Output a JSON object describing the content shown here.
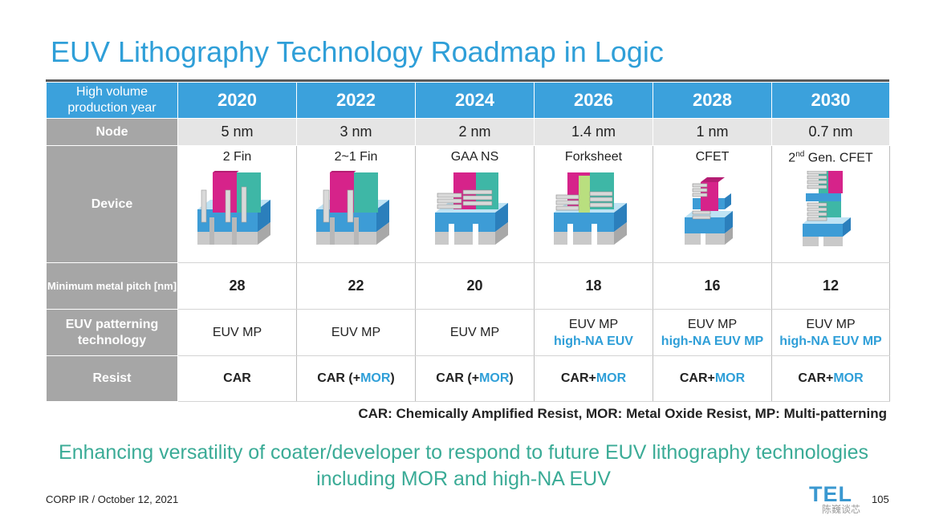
{
  "title": "EUV Lithography Technology Roadmap in Logic",
  "row_labels": {
    "year": "High volume production year",
    "node": "Node",
    "device": "Device",
    "pitch": "Minimum metal pitch [nm]",
    "euv": "EUV patterning technology",
    "resist": "Resist"
  },
  "columns": [
    {
      "year": "2020",
      "node": "5 nm",
      "device": "2 Fin",
      "device_type": "finfet-2fin",
      "pitch": "28",
      "euv_line1": "EUV MP",
      "euv_line2": "",
      "resist_car": "CAR",
      "resist_plus": "",
      "resist_mor": "",
      "resist_close": ""
    },
    {
      "year": "2022",
      "node": "3 nm",
      "device": "2~1 Fin",
      "device_type": "finfet-1fin",
      "pitch": "22",
      "euv_line1": "EUV MP",
      "euv_line2": "",
      "resist_car": "CAR (",
      "resist_plus": "+",
      "resist_mor": "MOR",
      "resist_close": ")"
    },
    {
      "year": "2024",
      "node": "2 nm",
      "device": "GAA NS",
      "device_type": "gaa-nanosheet",
      "pitch": "20",
      "euv_line1": "EUV MP",
      "euv_line2": "",
      "resist_car": "CAR (",
      "resist_plus": "+",
      "resist_mor": "MOR",
      "resist_close": ")"
    },
    {
      "year": "2026",
      "node": "1.4 nm",
      "device": "Forksheet",
      "device_type": "forksheet",
      "pitch": "18",
      "euv_line1": "EUV MP",
      "euv_line2": "high-NA EUV",
      "resist_car": "CAR",
      "resist_plus": "+",
      "resist_mor": "MOR",
      "resist_close": ""
    },
    {
      "year": "2028",
      "node": "1 nm",
      "device": "CFET",
      "device_type": "cfet",
      "pitch": "16",
      "euv_line1": "EUV MP",
      "euv_line2": "high-NA EUV MP",
      "resist_car": "CAR",
      "resist_plus": "+",
      "resist_mor": "MOR",
      "resist_close": ""
    },
    {
      "year": "2030",
      "node": "0.7 nm",
      "device_prefix": "2",
      "device_sup": "nd",
      "device": " Gen. CFET",
      "device_type": "cfet-gen2",
      "pitch": "12",
      "euv_line1": "EUV MP",
      "euv_line2": "high-NA EUV MP",
      "resist_car": "CAR",
      "resist_plus": "+",
      "resist_mor": "MOR",
      "resist_close": ""
    }
  ],
  "legend": "CAR: Chemically Amplified Resist, MOR: Metal Oxide Resist, MP: Multi-patterning",
  "message_line1": "Enhancing versatility of coater/developer to respond to future EUV lithography technologies",
  "message_line2": "including MOR and high-NA EUV",
  "footer": "CORP IR / October 12, 2021",
  "logo": "TEL",
  "watermark": "陈巍谈芯",
  "page_number": "105",
  "colors": {
    "accent": "#3ba1dc",
    "title": "#2f9fd8",
    "message": "#3aab96",
    "label_gray": "#a6a6a6",
    "node_row": "#e5e5e5"
  }
}
